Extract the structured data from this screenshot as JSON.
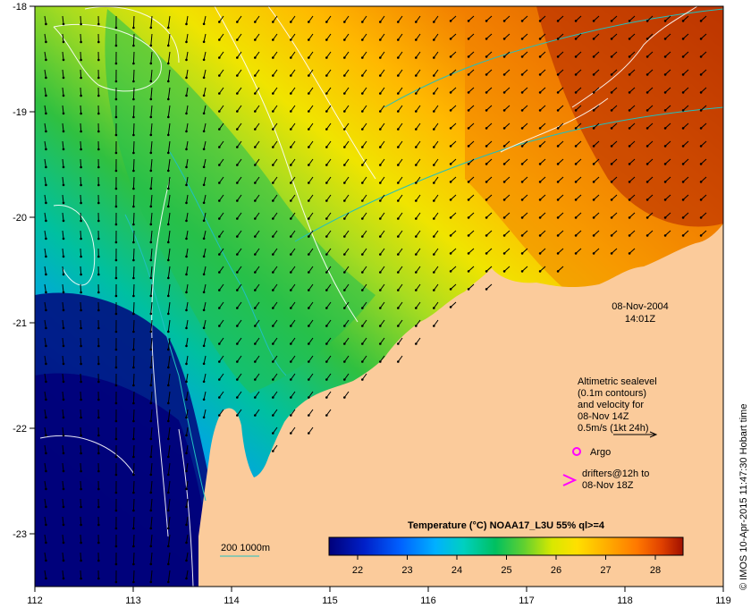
{
  "map": {
    "lon_ticks": [
      "112",
      "113",
      "114",
      "115",
      "116",
      "117",
      "118",
      "119"
    ],
    "lat_ticks": [
      "-18",
      "-19",
      "-20",
      "-21",
      "-22",
      "-23"
    ],
    "date": "08-Nov-2004",
    "time": "14:01Z",
    "legend": {
      "line1": "Altimetric sealevel",
      "line2": "(0.1m contours)",
      "line3": "and velocity for",
      "line4": "08-Nov 14Z",
      "scale": "0.5m/s (1kt 24h)",
      "argo": "Argo",
      "drifters1": "drifters@12h to",
      "drifters2": "08-Nov 18Z"
    },
    "isobath_label": "200  1000m",
    "colorbar": {
      "title": "Temperature (°C) NOAA17_L3U 55% ql>=4",
      "ticks": [
        "22",
        "23",
        "24",
        "25",
        "26",
        "27",
        "28"
      ],
      "colors": [
        "#00007a",
        "#0020c8",
        "#0080ff",
        "#00d0e0",
        "#00c870",
        "#60d030",
        "#d8e800",
        "#ffe000",
        "#ffb000",
        "#ff7800",
        "#e04000",
        "#a01000"
      ]
    },
    "credit": "© IMOS 10-Apr-2015 11:47:30 Hobart time",
    "colors": {
      "land": "#fbcb9b",
      "isobath": "#20c0c0",
      "contour": "#ffffff",
      "argo": "#ff00ff"
    }
  }
}
